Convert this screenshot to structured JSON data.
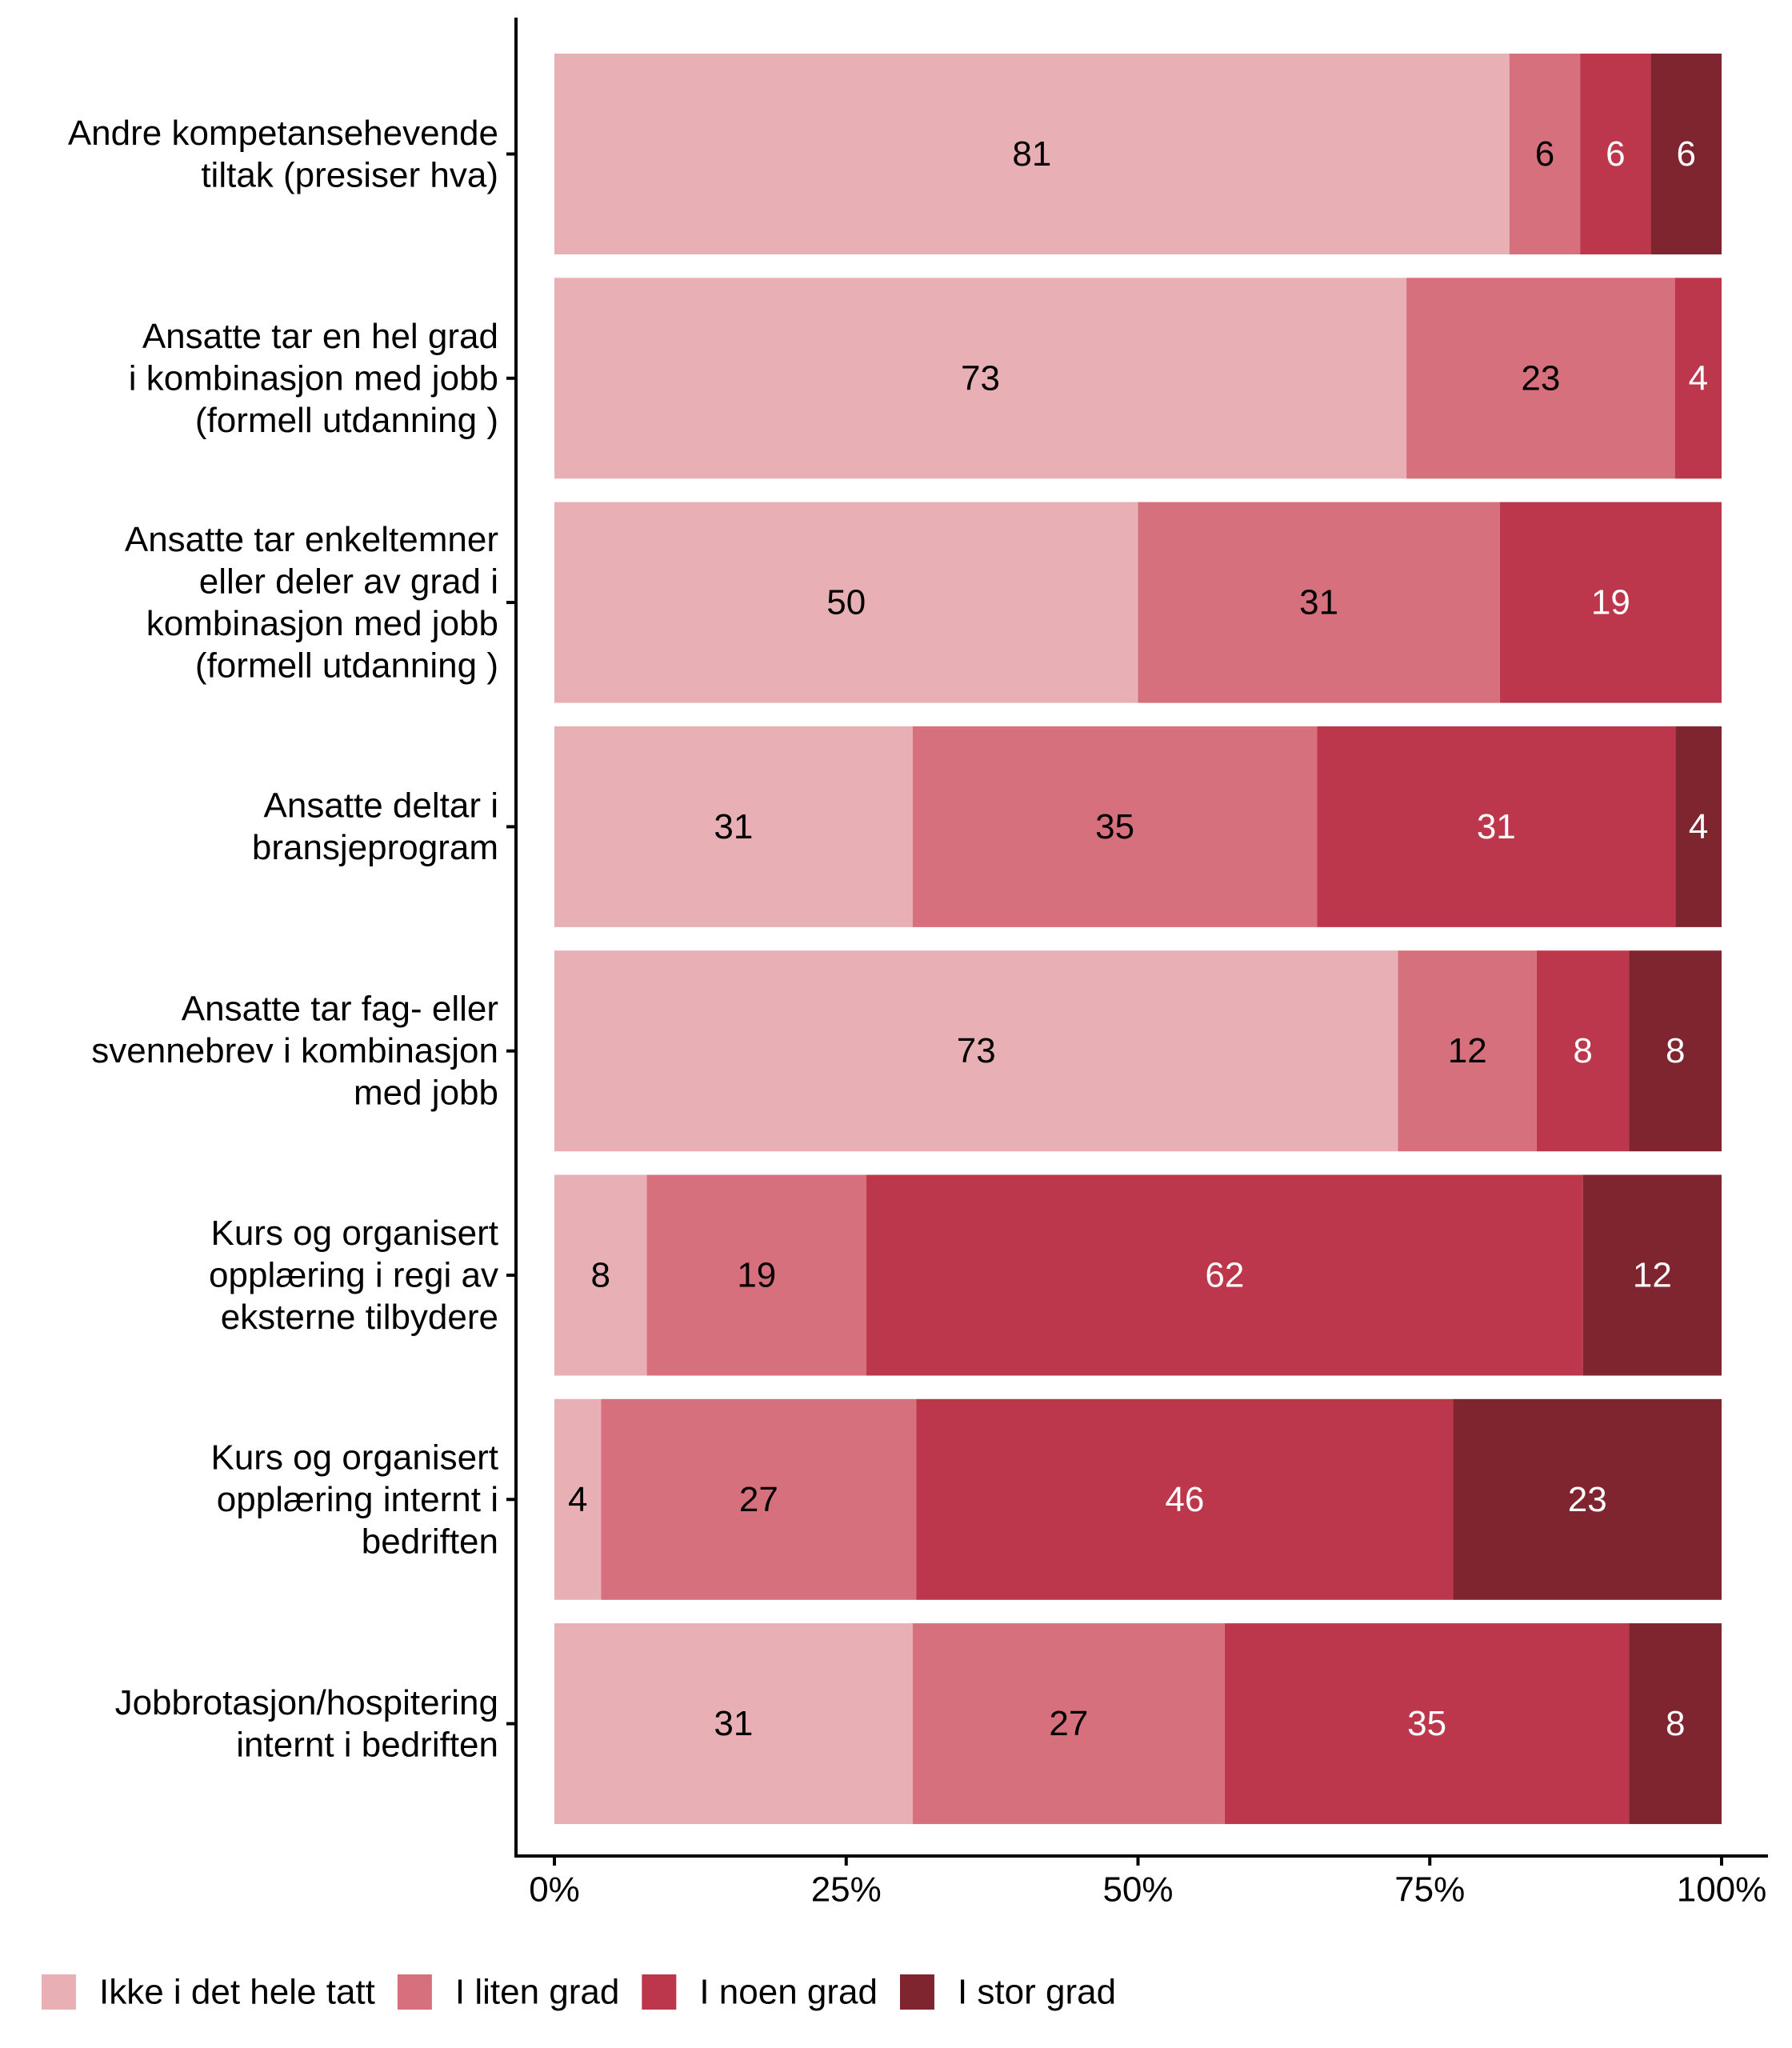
{
  "chart_data": {
    "type": "bar",
    "orientation": "horizontal",
    "stacked": true,
    "title": "",
    "xlabel": "",
    "ylabel": "",
    "xlim": [
      0,
      100
    ],
    "x_ticks": [
      0,
      25,
      50,
      75,
      100
    ],
    "x_tick_labels": [
      "0%",
      "25%",
      "50%",
      "75%",
      "100%"
    ],
    "grid": false,
    "legend_position": "bottom-left",
    "categories": [
      [
        "Andre kompetansehevende",
        "tiltak (presiser hva)"
      ],
      [
        "Ansatte tar en hel grad",
        "i kombinasjon med jobb",
        "(formell utdanning )"
      ],
      [
        "Ansatte tar enkeltemner",
        "eller deler av grad i",
        "kombinasjon med jobb",
        "(formell utdanning )"
      ],
      [
        "Ansatte deltar i",
        "bransjeprogram"
      ],
      [
        "Ansatte tar fag- eller",
        "svennebrev i kombinasjon",
        "med jobb"
      ],
      [
        "Kurs og organisert",
        "opplæring i regi av",
        "eksterne tilbydere"
      ],
      [
        "Kurs og organisert",
        "opplæring internt i",
        "bedriften"
      ],
      [
        "Jobbrotasjon/hospitering",
        "internt i bedriften"
      ]
    ],
    "series": [
      {
        "name": "Ikke i det hele tatt",
        "color": "#E8B0B5",
        "label_color": "#000000",
        "values": [
          81,
          73,
          50,
          31,
          73,
          8,
          4,
          31
        ]
      },
      {
        "name": "I liten grad",
        "color": "#D6707C",
        "label_color": "#000000",
        "values": [
          6,
          23,
          31,
          35,
          12,
          19,
          27,
          27
        ]
      },
      {
        "name": "I noen grad",
        "color": "#BC374B",
        "label_color": "#FFFFFF",
        "values": [
          6,
          4,
          19,
          31,
          8,
          62,
          46,
          35
        ]
      },
      {
        "name": "I stor grad",
        "color": "#7E2530",
        "label_color": "#FFFFFF",
        "values": [
          6,
          0,
          0,
          4,
          8,
          12,
          23,
          8
        ]
      }
    ]
  }
}
